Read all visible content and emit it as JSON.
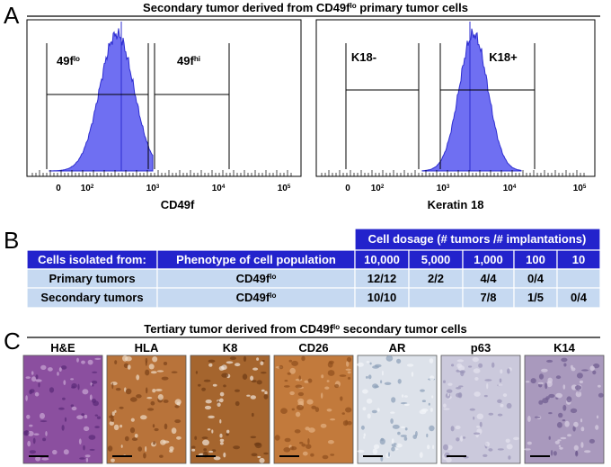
{
  "panel_a": {
    "letter": "A",
    "title": {
      "before": "Secondary tumor derived from CD49f",
      "sup": "lo",
      "after": " primary tumor cells"
    },
    "plots": [
      {
        "gates": [
          {
            "text": "49f",
            "sup": "lo"
          },
          {
            "text": "49f",
            "sup": "hi"
          }
        ],
        "ticks": [
          {
            "base": "0"
          },
          {
            "base": "10",
            "exp": "2"
          },
          {
            "base": "10",
            "exp": "3"
          },
          {
            "base": "10",
            "exp": "4"
          },
          {
            "base": "10",
            "exp": "5"
          }
        ],
        "xlabel": "CD49f"
      },
      {
        "gates": [
          {
            "text": "K18-"
          },
          {
            "text": "K18+"
          }
        ],
        "ticks": [
          {
            "base": "0"
          },
          {
            "base": "10",
            "exp": "2"
          },
          {
            "base": "10",
            "exp": "3"
          },
          {
            "base": "10",
            "exp": "4"
          },
          {
            "base": "10",
            "exp": "5"
          }
        ],
        "xlabel": "Keratin 18"
      }
    ]
  },
  "panel_b": {
    "letter": "B",
    "table": {
      "dosage_header": "Cell dosage (# tumors /# implantations)",
      "columns": [
        "Cells isolated from:",
        "Phenotype of cell population",
        "10,000",
        "5,000",
        "1,000",
        "100",
        "10"
      ],
      "rows": [
        [
          "Primary tumors",
          {
            "text": "CD49f",
            "sup": "lo"
          },
          "12/12",
          "2/2",
          "4/4",
          "0/4",
          null
        ],
        [
          "Secondary tumors",
          {
            "text": "CD49f",
            "sup": "lo"
          },
          "10/10",
          null,
          "7/8",
          "1/5",
          "0/4"
        ]
      ]
    }
  },
  "panel_c": {
    "letter": "C",
    "title": {
      "before": "Tertiary tumor derived from CD49f",
      "sup": "lo",
      "after": " secondary tumor cells"
    },
    "stains": [
      "H&E",
      "HLA",
      "K8",
      "CD26",
      "AR",
      "p63",
      "K14"
    ]
  }
}
